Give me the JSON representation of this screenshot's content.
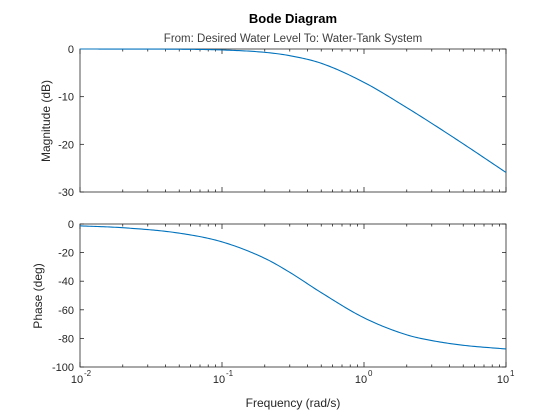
{
  "chart_data": {
    "type": "line",
    "title": "Bode Diagram",
    "subtitle": "From: Desired  Water Level  To: Water-Tank System",
    "xlabel": "Frequency (rad/s)",
    "x_scale": "log",
    "xlim": [
      0.01,
      10
    ],
    "x_ticks": [
      {
        "base": "10",
        "exp": "-2"
      },
      {
        "base": "10",
        "exp": "-1"
      },
      {
        "base": "10",
        "exp": "0"
      },
      {
        "base": "10",
        "exp": "1"
      }
    ],
    "grid": false,
    "line_color": "#0072BD",
    "panels": [
      {
        "name": "magnitude",
        "ylabel": "Magnitude (dB)",
        "ylim": [
          -30,
          0
        ],
        "y_ticks": [
          "0",
          "-10",
          "-20",
          "-30"
        ],
        "x": [
          0.01,
          0.02,
          0.05,
          0.1,
          0.2,
          0.3,
          0.5,
          1,
          2,
          3,
          5,
          10
        ],
        "y": [
          0.0,
          -0.01,
          -0.05,
          -0.2,
          -0.7,
          -1.4,
          -3.0,
          -7.0,
          -12.3,
          -15.6,
          -19.9,
          -25.9
        ]
      },
      {
        "name": "phase",
        "ylabel": "Phase (deg)",
        "ylim": [
          -100,
          0
        ],
        "y_ticks": [
          "0",
          "-20",
          "-40",
          "-60",
          "-80",
          "-100"
        ],
        "x": [
          0.01,
          0.02,
          0.05,
          0.1,
          0.2,
          0.3,
          0.5,
          1,
          2,
          3,
          5,
          10
        ],
        "y": [
          -1.3,
          -2.6,
          -6.4,
          -12.5,
          -24.0,
          -33.8,
          -48.0,
          -65.6,
          -77.5,
          -81.5,
          -84.8,
          -87.4
        ]
      }
    ]
  }
}
